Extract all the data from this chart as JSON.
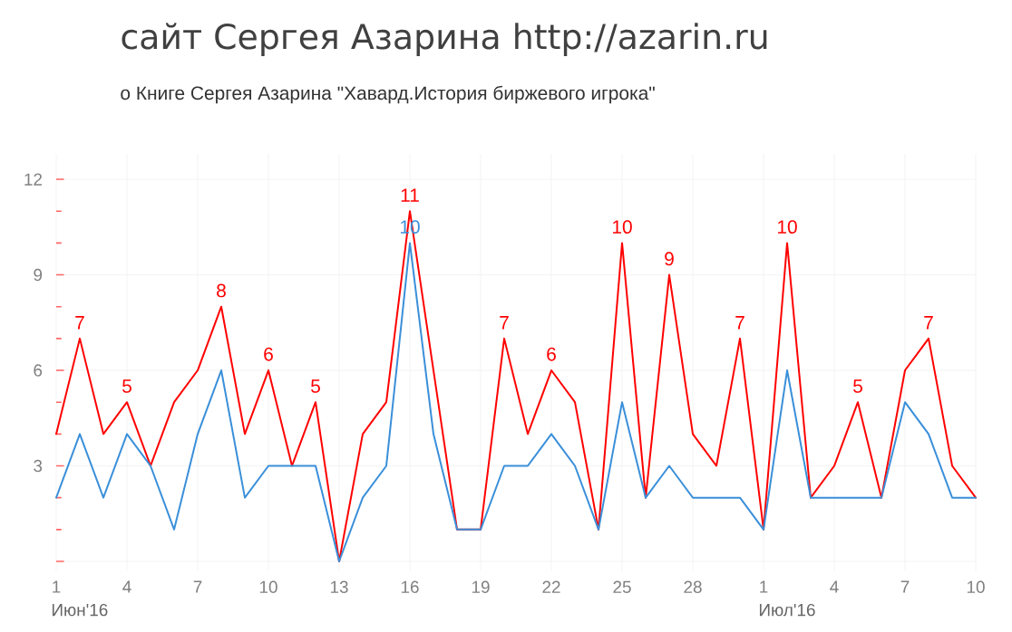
{
  "chart_data": {
    "type": "line",
    "title": "сайт Сергея Азарина http://azarin.ru",
    "subtitle": "о Книге Сергея Азарина \"Хавард.История биржевого игрока\"",
    "x": [
      "2016-06-01",
      "2016-06-02",
      "2016-06-03",
      "2016-06-04",
      "2016-06-05",
      "2016-06-06",
      "2016-06-07",
      "2016-06-08",
      "2016-06-09",
      "2016-06-10",
      "2016-06-11",
      "2016-06-12",
      "2016-06-13",
      "2016-06-14",
      "2016-06-15",
      "2016-06-16",
      "2016-06-17",
      "2016-06-18",
      "2016-06-19",
      "2016-06-20",
      "2016-06-21",
      "2016-06-22",
      "2016-06-23",
      "2016-06-24",
      "2016-06-25",
      "2016-06-26",
      "2016-06-27",
      "2016-06-28",
      "2016-06-29",
      "2016-06-30",
      "2016-07-01",
      "2016-07-02",
      "2016-07-03",
      "2016-07-04",
      "2016-07-05",
      "2016-07-06",
      "2016-07-07",
      "2016-07-08",
      "2016-07-09",
      "2016-07-10"
    ],
    "series": [
      {
        "color": "#ff0000",
        "values": [
          4,
          7,
          4,
          5,
          3,
          5,
          6,
          8,
          4,
          6,
          3,
          5,
          0,
          4,
          5,
          11,
          6,
          1,
          1,
          7,
          4,
          6,
          5,
          1,
          10,
          2,
          9,
          4,
          3,
          7,
          1,
          10,
          2,
          3,
          5,
          2,
          6,
          7,
          3,
          2
        ],
        "value_labels": [
          null,
          "7",
          null,
          "5",
          null,
          null,
          null,
          "8",
          null,
          "6",
          null,
          "5",
          null,
          null,
          null,
          "11",
          null,
          null,
          null,
          "7",
          null,
          "6",
          null,
          null,
          "10",
          null,
          "9",
          null,
          null,
          "7",
          null,
          "10",
          null,
          null,
          "5",
          null,
          null,
          "7",
          null,
          null
        ]
      },
      {
        "color": "#3a8fd9",
        "values": [
          2,
          4,
          2,
          4,
          3,
          1,
          4,
          6,
          2,
          3,
          3,
          3,
          0,
          2,
          3,
          10,
          4,
          1,
          1,
          3,
          3,
          4,
          3,
          1,
          5,
          2,
          3,
          2,
          2,
          2,
          1,
          6,
          2,
          2,
          2,
          2,
          5,
          4,
          2,
          2
        ],
        "value_labels": [
          null,
          null,
          null,
          null,
          null,
          null,
          null,
          null,
          null,
          null,
          null,
          null,
          null,
          null,
          null,
          "10",
          null,
          null,
          null,
          null,
          null,
          null,
          null,
          null,
          null,
          null,
          null,
          null,
          null,
          null,
          null,
          null,
          null,
          null,
          null,
          null,
          null,
          null,
          null,
          null
        ]
      }
    ],
    "xlim": [
      "2016-06-01",
      "2016-07-10"
    ],
    "xticks": [
      {
        "value": "2016-06-01",
        "label": "1"
      },
      {
        "value": "2016-06-04",
        "label": "4"
      },
      {
        "value": "2016-06-07",
        "label": "7"
      },
      {
        "value": "2016-06-10",
        "label": "10"
      },
      {
        "value": "2016-06-13",
        "label": "13"
      },
      {
        "value": "2016-06-16",
        "label": "16"
      },
      {
        "value": "2016-06-19",
        "label": "19"
      },
      {
        "value": "2016-06-22",
        "label": "22"
      },
      {
        "value": "2016-06-25",
        "label": "25"
      },
      {
        "value": "2016-06-28",
        "label": "28"
      },
      {
        "value": "2016-07-01",
        "label": "1"
      },
      {
        "value": "2016-07-04",
        "label": "4"
      },
      {
        "value": "2016-07-07",
        "label": "7"
      },
      {
        "value": "2016-07-10",
        "label": "10"
      }
    ],
    "ylim": [
      -0.3,
      12.8
    ],
    "yticks": [
      {
        "value": 0,
        "label": null
      },
      3,
      6,
      9,
      12
    ],
    "annotations": [
      "Июн'16",
      "Июл'16"
    ],
    "grid": true,
    "marker": "none",
    "line_style": "solid"
  }
}
